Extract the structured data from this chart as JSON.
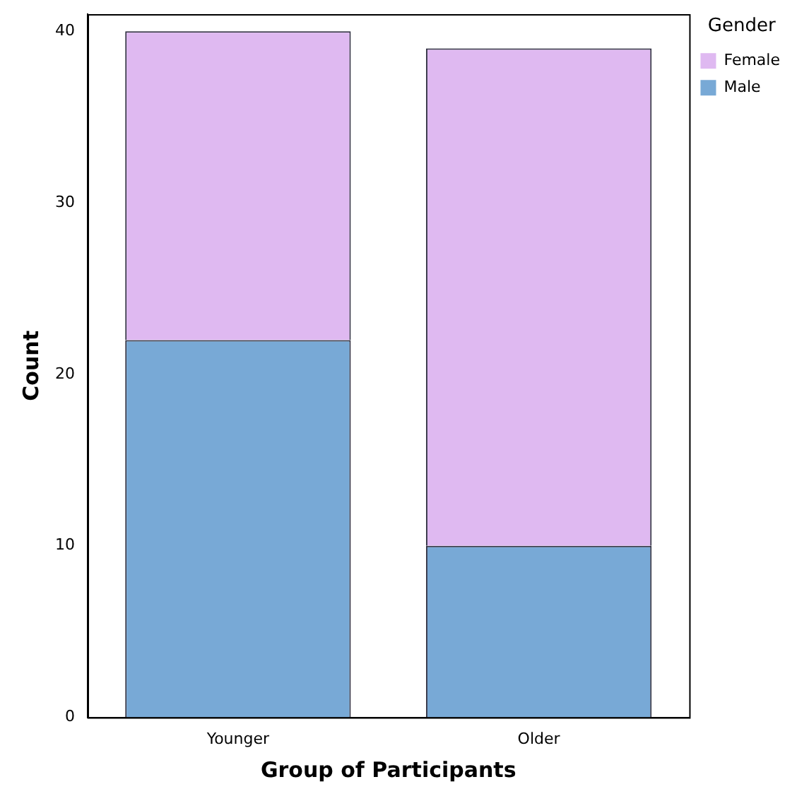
{
  "chart_data": {
    "type": "bar",
    "stacked": true,
    "xlabel": "Group of Participants",
    "ylabel": "Count",
    "legend_title": "Gender",
    "categories": [
      "Younger",
      "Older"
    ],
    "series": [
      {
        "name": "Male",
        "color": "#78a9d6",
        "values": [
          22,
          10
        ]
      },
      {
        "name": "Female",
        "color": "#dfb9f1",
        "values": [
          18,
          29
        ]
      }
    ],
    "ylim": [
      0,
      41
    ],
    "yticks": [
      0,
      10,
      20,
      30,
      40
    ],
    "grid": false,
    "legend": "top right"
  }
}
